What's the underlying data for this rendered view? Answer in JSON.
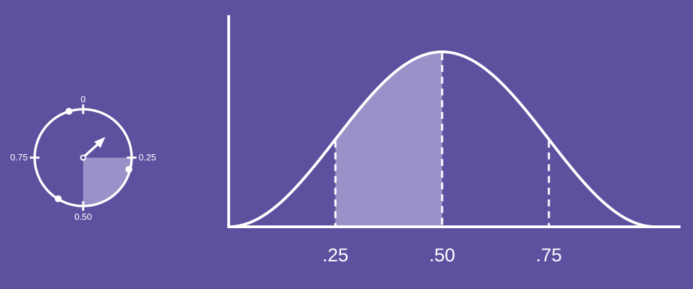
{
  "colors": {
    "background": "#5f509f",
    "foreground": "#ffffff",
    "shade": "#9a91c8"
  },
  "dial": {
    "labels": {
      "top": "0",
      "right": "0.25",
      "bottom": "0.50",
      "left": "0.75"
    },
    "icons": [
      "clock-dial-icon",
      "arrow-hand-icon"
    ],
    "shaded_quarter": [
      0.25,
      0.5
    ],
    "markers": [
      0.05,
      0.3,
      0.57
    ]
  },
  "chart_data": {
    "type": "area",
    "curve": "bell",
    "x_ticks": [
      ".25",
      ".50",
      ".75"
    ],
    "tick_positions": [
      0.25,
      0.5,
      0.75
    ],
    "shaded_interval": [
      0.25,
      0.5
    ],
    "xlim": [
      0,
      1
    ]
  }
}
